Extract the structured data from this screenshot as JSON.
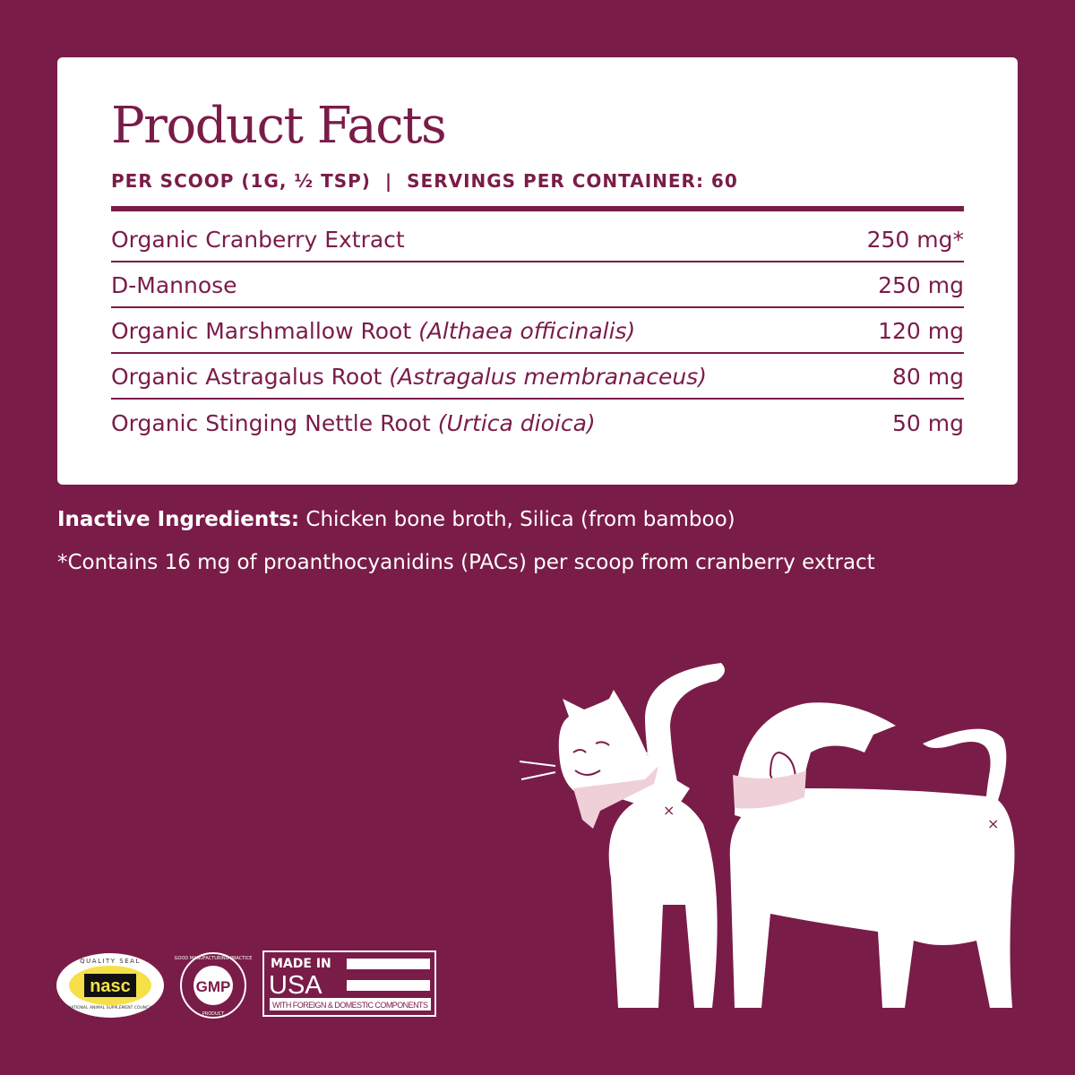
{
  "title": "Product Facts",
  "serving": {
    "per_scoop": "PER SCOOP (1G, ½ TSP)",
    "separator": "|",
    "servings": "SERVINGS PER CONTAINER: 60"
  },
  "ingredients": [
    {
      "name": "Organic Cranberry Extract",
      "latin": "",
      "amount": "250 mg*"
    },
    {
      "name": "D-Mannose",
      "latin": "",
      "amount": "250 mg"
    },
    {
      "name": "Organic Marshmallow Root",
      "latin": "(Althaea officinalis)",
      "amount": "120 mg"
    },
    {
      "name": "Organic Astragalus Root",
      "latin": "(Astragalus membranaceus)",
      "amount": "80 mg"
    },
    {
      "name": "Organic Stinging Nettle Root",
      "latin": "(Urtica dioica)",
      "amount": "50 mg"
    }
  ],
  "inactive": {
    "label": "Inactive Ingredients:",
    "text": " Chicken bone broth, Silica (from bamboo)"
  },
  "footnote": "*Contains 16 mg of proanthocyanidins (PACs) per scoop from cranberry extract",
  "badges": {
    "nasc": {
      "top": "QUALITY SEAL",
      "mark": "nasc",
      "bottom": "NATIONAL ANIMAL SUPPLEMENT COUNCIL"
    },
    "gmp": {
      "ring": "GOOD MANUFACTURING PRACTICE",
      "mark": "GMP",
      "bottom": "PRODUCT"
    },
    "usa": {
      "line1": "MADE IN",
      "line2": "USA",
      "line3": "WITH FOREIGN & DOMESTIC COMPONENTS"
    }
  },
  "colors": {
    "brand": "#7a1c48",
    "scarf": "#f0d0d8",
    "seal_yellow": "#f5e04a"
  }
}
